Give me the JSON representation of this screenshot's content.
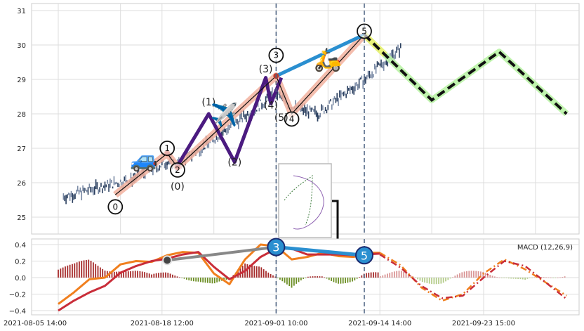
{
  "chart_data": [
    {
      "type": "candlestick",
      "panel": "price",
      "yticks": [
        25,
        26,
        27,
        28,
        29,
        30,
        31
      ],
      "ylim": [
        24.6,
        31.2
      ],
      "xlim": [
        0,
        100
      ],
      "candles_approx": {
        "segments": [
          {
            "x": [
              1,
              14
            ],
            "y": [
              25.6,
              26.1
            ]
          },
          {
            "x": [
              14,
              21
            ],
            "y": [
              26.1,
              26.6
            ]
          },
          {
            "x": [
              21,
              23
            ],
            "y": [
              26.6,
              26.5
            ]
          },
          {
            "x": [
              23,
              42
            ],
            "y": [
              26.5,
              28.6
            ]
          },
          {
            "x": [
              42,
              45
            ],
            "y": [
              28.6,
              28.2
            ]
          },
          {
            "x": [
              45,
              50
            ],
            "y": [
              28.2,
              28.0
            ]
          },
          {
            "x": [
              50,
              59
            ],
            "y": [
              28.0,
              29.0
            ]
          },
          {
            "x": [
              59,
              66
            ],
            "y": [
              29.0,
              29.9
            ]
          }
        ]
      },
      "wave_points": [
        {
          "label": "0",
          "x": 11,
          "y": 25.65,
          "label_y": 25.3
        },
        {
          "label": "1",
          "x": 21,
          "y": 26.85,
          "label_y": 27.0
        },
        {
          "label": "2",
          "x": 23,
          "y": 26.45,
          "label_y": 26.37
        },
        {
          "label": "3",
          "x": 42,
          "y": 29.1,
          "label_y": 29.7
        },
        {
          "label": "4",
          "x": 45,
          "y": 28.0,
          "label_y": 27.85
        },
        {
          "label": "5",
          "x": 59,
          "y": 30.3,
          "label_y": 30.4
        }
      ],
      "subwave_points": [
        {
          "label": "(0)",
          "x": 23,
          "y": 26.5,
          "label_y": 25.8
        },
        {
          "label": "(1)",
          "x": 29,
          "y": 28.0,
          "label_y": 28.25
        },
        {
          "label": "(2)",
          "x": 34,
          "y": 26.6,
          "label_y": 26.5
        },
        {
          "label": "(3)",
          "x": 40,
          "y": 29.05,
          "label_y": 29.2
        },
        {
          "label": "(4)",
          "x": 41,
          "y": 28.3,
          "label_y": 28.15
        },
        {
          "label": "(5)",
          "x": 43,
          "y": 29.05,
          "label_y": 27.8
        }
      ],
      "projection": {
        "x": [
          59,
          72,
          85,
          98
        ],
        "y": [
          30.3,
          28.4,
          29.8,
          28.0
        ]
      },
      "vlines_x": [
        42,
        59
      ],
      "emoji": [
        {
          "glyph": "🚙",
          "x": 16.5,
          "y": 26.7
        },
        {
          "glyph": "✈️",
          "x": 32,
          "y": 28.0
        },
        {
          "glyph": "🛵",
          "x": 52,
          "y": 29.6
        }
      ]
    },
    {
      "type": "line",
      "panel": "indicator",
      "legend": "MACD (12,26,9)",
      "xlim": [
        0,
        100
      ],
      "ylim": [
        -0.43,
        0.47
      ],
      "yticks": [
        -0.4,
        -0.2,
        0.0,
        0.2,
        0.4
      ],
      "ytick_labels": [
        "−0.4",
        "−0.2",
        "0.0",
        "0.2",
        "0.4"
      ],
      "xtick_labels": [
        {
          "x": 0,
          "label": "2021-08-05 14:00"
        },
        {
          "x": 20,
          "label": "2021-08-18 12:00"
        },
        {
          "x": 42,
          "label": "2021-09-01 10:00"
        },
        {
          "x": 62,
          "label": "2021-09-14 14:00"
        },
        {
          "x": 82,
          "label": "2021-09-23 15:00"
        }
      ],
      "series": [
        {
          "color": "#f07f1e",
          "x": [
            0,
            3,
            6,
            9,
            12,
            15,
            18,
            21,
            24,
            27,
            30,
            33,
            36,
            39,
            42,
            45,
            48,
            51,
            54,
            57,
            59,
            62
          ],
          "y": [
            -0.32,
            -0.18,
            -0.02,
            0.0,
            0.16,
            0.2,
            0.19,
            0.27,
            0.31,
            0.3,
            0.05,
            -0.08,
            0.22,
            0.4,
            0.38,
            0.22,
            0.25,
            0.3,
            0.26,
            0.25,
            0.3,
            0.3
          ]
        },
        {
          "color": "#c92d39",
          "x": [
            0,
            3,
            6,
            9,
            12,
            15,
            18,
            21,
            24,
            27,
            30,
            33,
            36,
            39,
            42,
            45,
            48,
            51,
            54,
            57,
            59,
            62
          ],
          "y": [
            -0.4,
            -0.28,
            -0.18,
            -0.1,
            0.06,
            0.14,
            0.2,
            0.23,
            0.28,
            0.31,
            0.13,
            -0.02,
            0.08,
            0.25,
            0.35,
            0.35,
            0.28,
            0.28,
            0.28,
            0.27,
            0.28,
            0.29
          ]
        }
      ],
      "projection_series": [
        {
          "color": "#f07f1e",
          "x": [
            62,
            66,
            70,
            74,
            78,
            82,
            86,
            90,
            98
          ],
          "y": [
            0.3,
            0.15,
            -0.12,
            -0.28,
            -0.2,
            0.05,
            0.22,
            0.1,
            -0.22
          ]
        },
        {
          "color": "#c92d39",
          "x": [
            62,
            66,
            70,
            74,
            78,
            82,
            86,
            90,
            98
          ],
          "y": [
            0.28,
            0.12,
            -0.1,
            -0.25,
            -0.22,
            0.0,
            0.2,
            0.14,
            -0.26
          ]
        }
      ],
      "markers": [
        {
          "label": "",
          "x": 21,
          "y": 0.21
        },
        {
          "label": "3",
          "x": 42,
          "y": 0.37
        },
        {
          "label": "5",
          "x": 59,
          "y": 0.27
        }
      ]
    }
  ]
}
